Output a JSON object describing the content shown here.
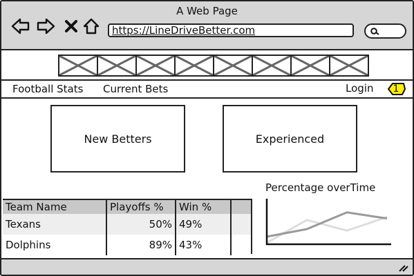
{
  "browser": {
    "page_title": "A Web Page",
    "url": "https://LineDriveBetter.com",
    "back_icon": "back-arrow-icon",
    "forward_icon": "forward-arrow-icon",
    "stop_icon": "close-icon",
    "home_icon": "home-icon",
    "search_icon": "search-icon"
  },
  "banner": {
    "image_count": 8
  },
  "menu": {
    "items": [
      {
        "label": "Football Stats"
      },
      {
        "label": "Current Bets"
      }
    ],
    "login_label": "Login",
    "badge_count": "1",
    "badge_color": "#ffef00"
  },
  "panels": {
    "new_betters": "New Betters",
    "experienced": "Experienced"
  },
  "table": {
    "headers": [
      "Team Name",
      "Playoffs %",
      "Win %",
      ""
    ],
    "rows": [
      {
        "team": "Texans",
        "playoffs": "50%",
        "win": "49%"
      },
      {
        "team": "Dolphins",
        "playoffs": "89%",
        "win": "43%"
      }
    ]
  },
  "chart_data": {
    "type": "line",
    "title": "Percentage overTime",
    "xlabel": "",
    "ylabel": "",
    "x": [
      0,
      1,
      2,
      3
    ],
    "ylim": [
      0,
      60
    ],
    "series": [
      {
        "values": [
          10,
          20,
          42,
          34
        ],
        "color": "#999999"
      },
      {
        "values": [
          2,
          32,
          18,
          36
        ],
        "color": "#dddddd"
      }
    ]
  }
}
